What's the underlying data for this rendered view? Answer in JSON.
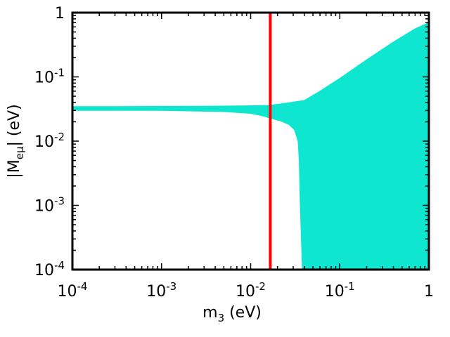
{
  "chart_data": {
    "type": "scatter",
    "title": "",
    "xlabel": {
      "base": "m",
      "sub": "3",
      "rest": " (eV)"
    },
    "ylabel": {
      "pre": "|M",
      "sub": "eμ",
      "rest": "| (eV)"
    },
    "x_scale": "log",
    "y_scale": "log",
    "xlim": [
      0.0001,
      1
    ],
    "ylim": [
      0.0001,
      1
    ],
    "grid": false,
    "legend": "none",
    "x_ticks": [
      {
        "value": 0.0001,
        "base": "10",
        "exp": "-4"
      },
      {
        "value": 0.001,
        "base": "10",
        "exp": "-3"
      },
      {
        "value": 0.01,
        "base": "10",
        "exp": "-2"
      },
      {
        "value": 0.1,
        "base": "10",
        "exp": "-1"
      },
      {
        "value": 1,
        "base": "1",
        "exp": ""
      }
    ],
    "y_ticks": [
      {
        "value": 0.0001,
        "base": "10",
        "exp": "-4"
      },
      {
        "value": 0.001,
        "base": "10",
        "exp": "-3"
      },
      {
        "value": 0.01,
        "base": "10",
        "exp": "-2"
      },
      {
        "value": 0.1,
        "base": "10",
        "exp": "-1"
      },
      {
        "value": 1,
        "base": "1",
        "exp": ""
      }
    ],
    "region": {
      "color": "#0ee6d0",
      "outline": [
        [
          0.0001,
          0.0345
        ],
        [
          0.0003,
          0.0345
        ],
        [
          0.001,
          0.0348
        ],
        [
          0.003,
          0.035
        ],
        [
          0.008,
          0.0355
        ],
        [
          0.016,
          0.036
        ],
        [
          0.025,
          0.039
        ],
        [
          0.04,
          0.043
        ],
        [
          0.06,
          0.06
        ],
        [
          0.1,
          0.095
        ],
        [
          0.2,
          0.185
        ],
        [
          0.4,
          0.35
        ],
        [
          0.7,
          0.56
        ],
        [
          1,
          0.7
        ],
        [
          1,
          0.0001
        ],
        [
          0.038,
          0.0001
        ],
        [
          0.036,
          0.001
        ],
        [
          0.035,
          0.005
        ],
        [
          0.034,
          0.01
        ],
        [
          0.031,
          0.015
        ],
        [
          0.027,
          0.018
        ],
        [
          0.022,
          0.0205
        ],
        [
          0.017,
          0.0225
        ],
        [
          0.014,
          0.0245
        ],
        [
          0.01,
          0.027
        ],
        [
          0.005,
          0.0288
        ],
        [
          0.001,
          0.03
        ],
        [
          0.0001,
          0.03
        ]
      ]
    },
    "vertical_line": {
      "x": 0.0166,
      "color": "#ff0000"
    }
  }
}
